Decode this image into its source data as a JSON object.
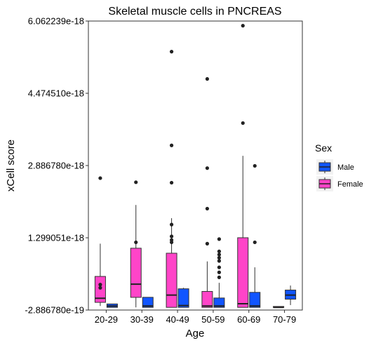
{
  "chart_data": {
    "type": "box",
    "title": "Skeletal muscle cells in PNCREAS",
    "xlabel": "Age",
    "ylabel": "xCell score",
    "ylim": [
      -2.88678e-19,
      6.062239e-18
    ],
    "yticks": [
      {
        "value": -2.88678e-19,
        "label": "-2.886780e-19"
      },
      {
        "value": 1.299051e-18,
        "label": "1.299051e-18"
      },
      {
        "value": 2.88678e-18,
        "label": "2.886780e-18"
      },
      {
        "value": 4.47451e-18,
        "label": "4.474510e-18"
      },
      {
        "value": 6.062239e-18,
        "label": "6.062239e-18"
      }
    ],
    "categories": [
      "20-29",
      "30-39",
      "40-49",
      "50-59",
      "60-69",
      "70-79"
    ],
    "legend": {
      "title": "Sex",
      "position": "right"
    },
    "series": [
      {
        "name": "Male",
        "color": "#1155ff",
        "boxes": [
          {
            "category": "20-29",
            "min": -2.3e-19,
            "q1": -2.3e-19,
            "median": -2e-19,
            "q3": -1.55e-19,
            "max": -1.5e-19,
            "outliers": []
          },
          {
            "category": "30-39",
            "min": -2.3e-19,
            "q1": -2.3e-19,
            "median": -2e-19,
            "q3": -9e-21,
            "max": -9e-21,
            "outliers": []
          },
          {
            "category": "40-49",
            "min": -2.3e-19,
            "q1": -2.3e-19,
            "median": -1.9e-19,
            "q3": 1.78e-19,
            "max": 2e-19,
            "outliers": []
          },
          {
            "category": "50-59",
            "min": -2.3e-19,
            "q1": -2.3e-19,
            "median": -2e-19,
            "q3": -2.4e-20,
            "max": 3.1e-19,
            "outliers": [
              4.3e-19,
              5.4e-19,
              6.5e-19,
              7.9e-19,
              8.6e-19,
              9.3e-19,
              1e-18,
              1.27e-18
            ]
          },
          {
            "category": "60-69",
            "min": -2.3e-19,
            "q1": -2.3e-19,
            "median": -2e-19,
            "q3": 1e-19,
            "max": 6.5e-19,
            "outliers": [
              1.2e-18,
              2.88e-18
            ]
          },
          {
            "category": "70-79",
            "min": -1.8e-19,
            "q1": -5e-20,
            "median": 4e-20,
            "q3": 1.5e-19,
            "max": 2.5e-19,
            "outliers": []
          }
        ]
      },
      {
        "name": "Female",
        "color": "#ff44c8",
        "boxes": [
          {
            "category": "20-29",
            "min": -2e-19,
            "q1": -1.2e-19,
            "median": -3e-20,
            "q3": 4.5e-19,
            "max": 1.17e-18,
            "outliers": [
              2e-19,
              2.7e-19,
              2.61e-18
            ]
          },
          {
            "category": "30-39",
            "min": -2.3e-19,
            "q1": -1e-20,
            "median": 2.8e-19,
            "q3": 1.07e-18,
            "max": 2.02e-18,
            "outliers": [
              1.2e-18,
              2.52e-18
            ]
          },
          {
            "category": "40-49",
            "min": -2.3e-19,
            "q1": -2.3e-19,
            "median": 4e-20,
            "q3": 9.6e-19,
            "max": 1.73e-18,
            "outliers": [
              1.2e-18,
              1.25e-18,
              1.33e-18,
              1.59e-18,
              2.51e-18,
              3.33e-18,
              5.39e-18
            ]
          },
          {
            "category": "50-59",
            "min": -2.3e-19,
            "q1": -2.3e-19,
            "median": -2e-19,
            "q3": 1.2e-19,
            "max": 7.8e-19,
            "outliers": [
              1.17e-18,
              1.94e-18,
              2.83e-18,
              4.79e-18
            ]
          },
          {
            "category": "60-69",
            "min": -2.3e-19,
            "q1": -2.3e-19,
            "median": -1.5e-19,
            "q3": 1.3e-18,
            "max": 3.1e-18,
            "outliers": [
              3.82e-18,
              5.96e-18
            ]
          },
          {
            "category": "70-79",
            "min": -2.3e-19,
            "q1": -2.3e-19,
            "median": -2.3e-19,
            "q3": -2.1e-19,
            "max": -2.1e-19,
            "outliers": []
          }
        ]
      }
    ]
  },
  "legend_items": [
    {
      "label": "Male",
      "color": "#1155ff"
    },
    {
      "label": "Female",
      "color": "#ff44c8"
    }
  ]
}
